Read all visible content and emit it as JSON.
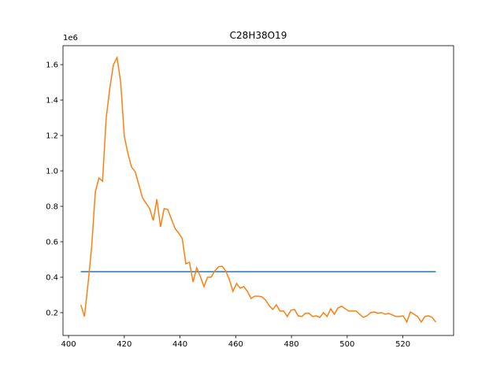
{
  "chart_data": {
    "type": "line",
    "title": "C28H38O19",
    "y_offset_label": "1e6",
    "xlim": [
      398,
      538.2
    ],
    "xticks": [
      400,
      420,
      440,
      460,
      480,
      500,
      520
    ],
    "ylim": [
      71000,
      1707000
    ],
    "yticks": [
      {
        "value": 200000,
        "label": "0.2"
      },
      {
        "value": 400000,
        "label": "0.4"
      },
      {
        "value": 600000,
        "label": "0.6"
      },
      {
        "value": 800000,
        "label": "0.8"
      },
      {
        "value": 1000000,
        "label": "1.0"
      },
      {
        "value": 1200000,
        "label": "1.2"
      },
      {
        "value": 1400000,
        "label": "1.4"
      },
      {
        "value": 1600000,
        "label": "1.6"
      }
    ],
    "series": [
      {
        "color": "#1f77b4",
        "x": [
          404.4,
          531.8
        ],
        "values": [
          431000,
          431000
        ]
      },
      {
        "color": "#ff7f0e",
        "x": [
          404.4,
          405.7,
          407.0,
          408.3,
          409.6,
          410.9,
          412.2,
          413.5,
          414.8,
          416.1,
          417.4,
          418.7,
          420.0,
          421.3,
          422.6,
          423.9,
          425.2,
          426.5,
          427.8,
          429.1,
          430.4,
          431.7,
          433.0,
          434.3,
          435.6,
          436.9,
          438.2,
          439.5,
          440.8,
          442.1,
          443.4,
          444.7,
          446.0,
          447.3,
          448.6,
          449.9,
          451.2,
          452.5,
          453.8,
          455.1,
          456.4,
          457.7,
          459.0,
          460.3,
          461.6,
          462.9,
          464.2,
          465.5,
          466.8,
          468.1,
          469.4,
          470.7,
          472.0,
          473.3,
          474.6,
          475.9,
          477.2,
          478.5,
          479.8,
          481.1,
          482.4,
          483.7,
          485.0,
          486.3,
          487.6,
          488.9,
          490.2,
          491.5,
          492.8,
          494.1,
          495.4,
          496.7,
          498.0,
          499.3,
          500.6,
          501.9,
          503.2,
          504.5,
          505.8,
          507.1,
          508.4,
          509.7,
          511.0,
          512.3,
          513.6,
          514.9,
          516.2,
          517.5,
          518.8,
          520.1,
          521.4,
          522.7,
          524.0,
          525.3,
          526.6,
          527.9,
          529.2,
          530.5,
          531.8
        ],
        "values": [
          244000,
          178000,
          364000,
          573000,
          880000,
          960000,
          942000,
          1298000,
          1467000,
          1600000,
          1640000,
          1502000,
          1196000,
          1098000,
          1022000,
          996000,
          924000,
          849000,
          818000,
          787000,
          720000,
          840000,
          684000,
          787000,
          782000,
          729000,
          676000,
          649000,
          618000,
          476000,
          484000,
          373000,
          453000,
          404000,
          347000,
          400000,
          400000,
          436000,
          458000,
          462000,
          436000,
          387000,
          320000,
          364000,
          338000,
          347000,
          320000,
          280000,
          293000,
          293000,
          289000,
          271000,
          240000,
          218000,
          244000,
          209000,
          209000,
          178000,
          213000,
          218000,
          182000,
          178000,
          196000,
          196000,
          178000,
          182000,
          173000,
          200000,
          178000,
          222000,
          191000,
          227000,
          236000,
          222000,
          209000,
          209000,
          209000,
          191000,
          173000,
          182000,
          200000,
          204000,
          196000,
          200000,
          191000,
          196000,
          187000,
          178000,
          178000,
          182000,
          147000,
          204000,
          191000,
          178000,
          147000,
          178000,
          182000,
          173000,
          147000
        ]
      }
    ]
  }
}
